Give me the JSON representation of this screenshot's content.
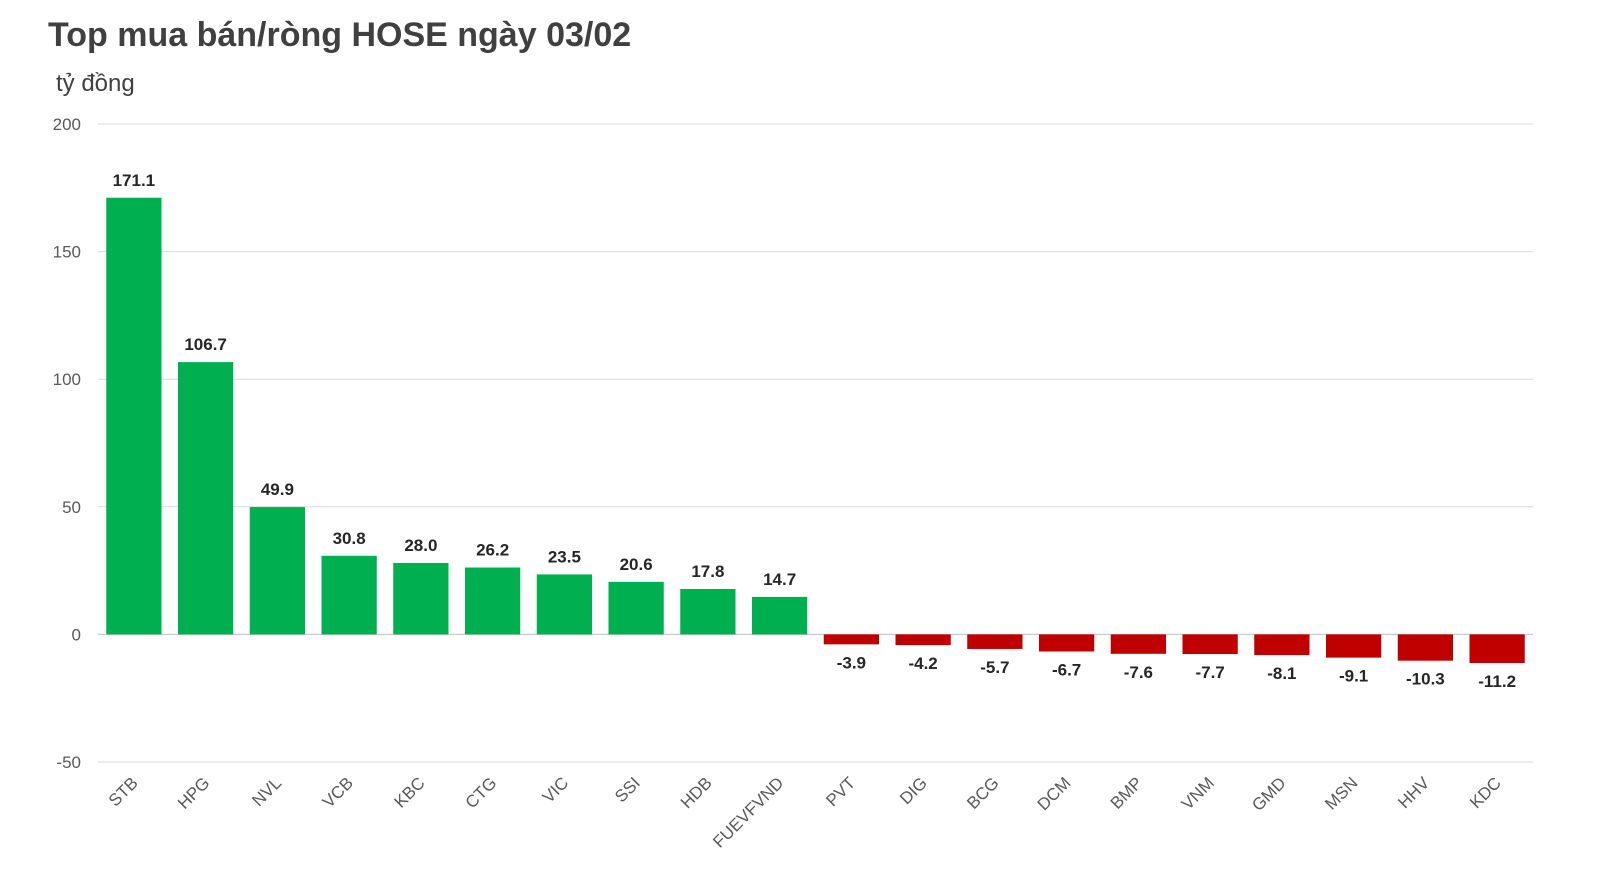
{
  "chart_data": {
    "type": "bar",
    "title": "Top mua bán/ròng HOSE ngày 03/02",
    "ylabel": "tỷ đồng",
    "xlabel": "",
    "ylim": [
      -50,
      200
    ],
    "yticks": [
      -50,
      0,
      50,
      100,
      150,
      200
    ],
    "grid": true,
    "legend": "none",
    "colors": {
      "positive": "#00B050",
      "negative": "#C00000"
    },
    "categories": [
      "STB",
      "HPG",
      "NVL",
      "VCB",
      "KBC",
      "CTG",
      "VIC",
      "SSI",
      "HDB",
      "FUEVFVND",
      "PVT",
      "DIG",
      "BCG",
      "DCM",
      "BMP",
      "VNM",
      "GMD",
      "MSN",
      "HHV",
      "KDC"
    ],
    "values": [
      171.1,
      106.7,
      49.9,
      30.8,
      28.0,
      26.2,
      23.5,
      20.6,
      17.8,
      14.7,
      -3.9,
      -4.2,
      -5.7,
      -6.7,
      -7.6,
      -7.7,
      -8.1,
      -9.1,
      -10.3,
      -11.2
    ],
    "data_labels": [
      "171.1",
      "106.7",
      "49.9",
      "30.8",
      "28.0",
      "26.2",
      "23.5",
      "20.6",
      "17.8",
      "14.7",
      "-3.9",
      "-4.2",
      "-5.7",
      "-6.7",
      "-7.6",
      "-7.7",
      "-8.1",
      "-9.1",
      "-10.3",
      "-11.2"
    ]
  }
}
